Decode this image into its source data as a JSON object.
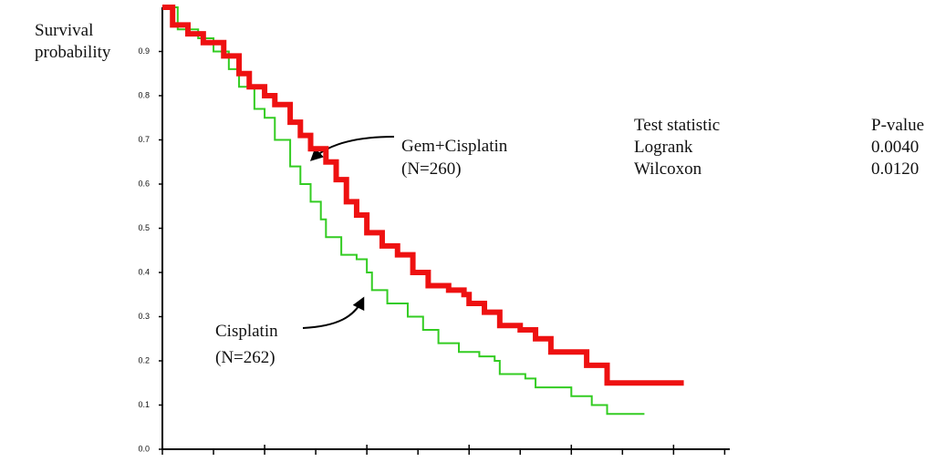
{
  "chart_data": {
    "type": "step",
    "ylabel": [
      "Survival",
      "probability"
    ],
    "ylim": [
      0,
      1.0
    ],
    "yticks": [
      {
        "value": 0,
        "label": "0.0"
      },
      0.1,
      0.2,
      0.3,
      0.4,
      0.5,
      0.6,
      0.7,
      0.8,
      0.9
    ],
    "xlim": [
      0,
      11.1
    ],
    "xticks": [
      0,
      1,
      2,
      3,
      4,
      5,
      6,
      7,
      8,
      9,
      10,
      11
    ],
    "series": [
      {
        "name": "Gem+Cisplatin",
        "color": "#ee1111",
        "x": [
          0,
          0.2,
          0.5,
          0.8,
          1.2,
          1.5,
          1.7,
          2.0,
          2.2,
          2.5,
          2.7,
          2.9,
          3.2,
          3.4,
          3.6,
          3.8,
          4.0,
          4.3,
          4.6,
          4.9,
          5.2,
          5.6,
          5.9,
          6.0,
          6.3,
          6.6,
          7.0,
          7.3,
          7.6,
          8.0,
          8.3,
          8.6,
          8.7,
          10.2
        ],
        "values": [
          1.0,
          0.96,
          0.94,
          0.92,
          0.89,
          0.85,
          0.82,
          0.8,
          0.78,
          0.74,
          0.71,
          0.68,
          0.65,
          0.61,
          0.56,
          0.53,
          0.49,
          0.46,
          0.44,
          0.4,
          0.37,
          0.36,
          0.35,
          0.33,
          0.31,
          0.28,
          0.27,
          0.25,
          0.22,
          0.22,
          0.19,
          0.19,
          0.15,
          0.15
        ]
      },
      {
        "name": "Cisplatin",
        "color": "#33cc22",
        "x": [
          0,
          0.3,
          0.7,
          1.0,
          1.3,
          1.5,
          1.8,
          2.0,
          2.2,
          2.5,
          2.7,
          2.9,
          3.1,
          3.2,
          3.5,
          3.8,
          4.0,
          4.1,
          4.4,
          4.8,
          5.1,
          5.4,
          5.8,
          6.2,
          6.5,
          6.6,
          7.1,
          7.3,
          8.0,
          8.4,
          8.7,
          9.43
        ],
        "values": [
          1.0,
          0.95,
          0.93,
          0.9,
          0.86,
          0.82,
          0.77,
          0.75,
          0.7,
          0.64,
          0.6,
          0.56,
          0.52,
          0.48,
          0.44,
          0.43,
          0.4,
          0.36,
          0.33,
          0.3,
          0.27,
          0.24,
          0.22,
          0.21,
          0.2,
          0.17,
          0.16,
          0.14,
          0.12,
          0.1,
          0.08,
          0.08
        ]
      }
    ],
    "annotations": [
      {
        "text": [
          "Gem+Cisplatin",
          "(N=260)"
        ]
      },
      {
        "text": [
          "Cisplatin",
          "(N=262)"
        ]
      }
    ],
    "stats_table": {
      "header": [
        "Test statistic",
        "P-value"
      ],
      "rows": [
        [
          "Logrank",
          "0.0040"
        ],
        [
          "Wilcoxon",
          "0.0120"
        ]
      ]
    }
  }
}
